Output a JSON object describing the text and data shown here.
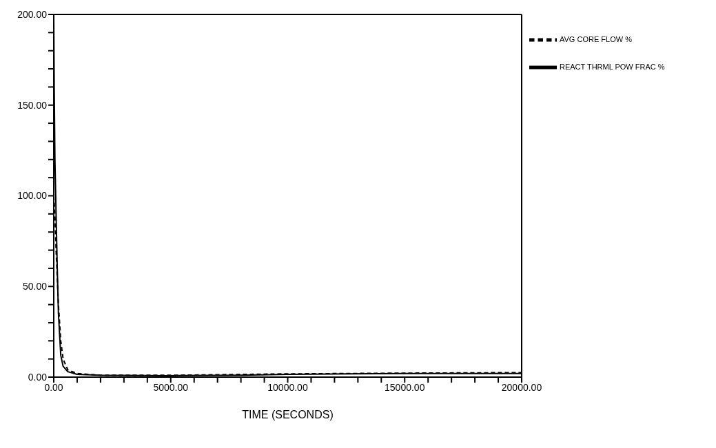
{
  "chart_data": {
    "type": "line",
    "xlabel": "TIME (SECONDS)",
    "xlim": [
      0,
      20000
    ],
    "xticks": [
      {
        "value": 0,
        "label": "0.00"
      },
      {
        "value": 1000,
        "label": null
      },
      {
        "value": 2000,
        "label": null
      },
      {
        "value": 3000,
        "label": null
      },
      {
        "value": 4000,
        "label": null
      },
      {
        "value": 5000,
        "label": "5000.00"
      },
      {
        "value": 6000,
        "label": null
      },
      {
        "value": 7000,
        "label": null
      },
      {
        "value": 8000,
        "label": null
      },
      {
        "value": 9000,
        "label": null
      },
      {
        "value": 10000,
        "label": "10000.00"
      },
      {
        "value": 11000,
        "label": null
      },
      {
        "value": 12000,
        "label": null
      },
      {
        "value": 13000,
        "label": null
      },
      {
        "value": 14000,
        "label": null
      },
      {
        "value": 15000,
        "label": "15000.00"
      },
      {
        "value": 16000,
        "label": null
      },
      {
        "value": 17000,
        "label": null
      },
      {
        "value": 18000,
        "label": null
      },
      {
        "value": 19000,
        "label": null
      },
      {
        "value": 20000,
        "label": "20000.00"
      }
    ],
    "ylim": [
      0,
      200
    ],
    "yticks": [
      {
        "value": 0,
        "label": "0.00"
      },
      {
        "value": 10,
        "label": null
      },
      {
        "value": 20,
        "label": null
      },
      {
        "value": 30,
        "label": null
      },
      {
        "value": 40,
        "label": null
      },
      {
        "value": 50,
        "label": "50.00"
      },
      {
        "value": 60,
        "label": null
      },
      {
        "value": 70,
        "label": null
      },
      {
        "value": 80,
        "label": null
      },
      {
        "value": 90,
        "label": null
      },
      {
        "value": 100,
        "label": "100.00"
      },
      {
        "value": 110,
        "label": null
      },
      {
        "value": 120,
        "label": null
      },
      {
        "value": 130,
        "label": null
      },
      {
        "value": 140,
        "label": null
      },
      {
        "value": 150,
        "label": "150.00"
      },
      {
        "value": 160,
        "label": null
      },
      {
        "value": 170,
        "label": null
      },
      {
        "value": 180,
        "label": null
      },
      {
        "value": 190,
        "label": null
      },
      {
        "value": 200,
        "label": "200.00"
      }
    ],
    "grid": false,
    "legend": "top right",
    "marker": "none",
    "series": [
      {
        "name": "REACT THRML POW FRAC  %",
        "color": "#000000",
        "line_style": "solid",
        "x": [
          0,
          20,
          50,
          100,
          150,
          200,
          300,
          400,
          600,
          1000,
          2000,
          5000,
          8000,
          10000,
          15000,
          20000
        ],
        "values": [
          200,
          160,
          120,
          90,
          60,
          35,
          12,
          6,
          3,
          1.5,
          1,
          0.8,
          1,
          1.5,
          2,
          2
        ]
      },
      {
        "name": "AVG CORE FLOW          %",
        "color": "#000000",
        "line_style": "dashed",
        "x": [
          0,
          50,
          100,
          200,
          300,
          400,
          600,
          1000,
          2000,
          5000,
          10000,
          15000,
          20000
        ],
        "values": [
          100,
          90,
          70,
          40,
          20,
          10,
          4,
          2,
          1,
          1,
          1.8,
          2.2,
          2.5
        ]
      }
    ]
  }
}
